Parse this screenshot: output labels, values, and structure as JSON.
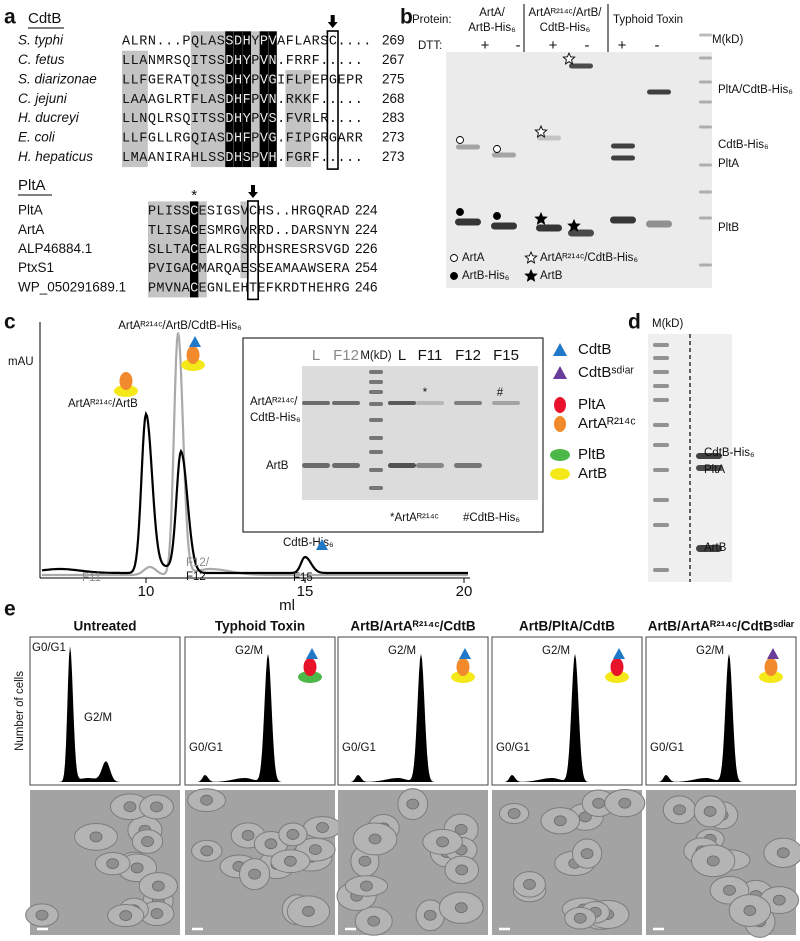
{
  "panel_a": {
    "label": "a",
    "cdtb": {
      "title": "CdtB",
      "rows": [
        {
          "name": "S. typhi",
          "sequence": "ALRN...PQLASSDHYPVAFLARSC....",
          "end": 269
        },
        {
          "name": "C. fetus",
          "sequence": "LLANMRSQITSSDHYPVN.FRRF.....",
          "end": 267
        },
        {
          "name": "S. diarizonae",
          "sequence": "LLFGERATQISSDHYPVGIFLPEPGEPR",
          "end": 275
        },
        {
          "name": "C. jejuni",
          "sequence": "LAAAGLRTFLASDHFPVN.RKKF.....",
          "end": 268
        },
        {
          "name": "H. ducreyi",
          "sequence": "LLNQLRSQITSSDHYPVS.FVRLR....",
          "end": 283
        },
        {
          "name": "E. coli",
          "sequence": "LLFGLLRGQIASDHFPVG.FIPGRGARR",
          "end": 273
        },
        {
          "name": "H. hepaticus",
          "sequence": "LMAANIRAHLSSDHSPVH.FGRF.....",
          "end": 273
        }
      ]
    },
    "plta": {
      "title": "PltA",
      "marker": "*",
      "rows": [
        {
          "name": "PltA",
          "sequence": "PLISSCESIGSVCHS..HRGQRAD",
          "end": 224
        },
        {
          "name": "ArtA",
          "sequence": "TLISACESMRGVRRD..DARSNYN",
          "end": 224
        },
        {
          "name": "ALP46884.1",
          "sequence": "SLLTACEALRGSRDHSRESRSVGD",
          "end": 226
        },
        {
          "name": "PtxS1",
          "sequence": "PVIGACMARQAESSEAMAAWSERA",
          "end": 254
        },
        {
          "name": "WP_050291689.1",
          "sequence": "PMVNACEGNLEHTEFKRDTHEHRG",
          "end": 246
        }
      ]
    }
  },
  "panel_b": {
    "label": "b",
    "protein_label": "Protein:",
    "groups": [
      [
        "ArtA/",
        "ArtB-His₆"
      ],
      [
        "ArtAᴿ²¹⁴ᶜ/ArtB/",
        "CdtB-His₆"
      ],
      [
        "Typhoid Toxin"
      ]
    ],
    "dtt_label": "DTT:",
    "dtt": [
      "+",
      "-",
      "+",
      "-",
      "+",
      "-"
    ],
    "marker_label": "M(kD)",
    "band_labels": [
      "PltA/CdtB-His₆",
      "CdtB-His₆",
      "PltA",
      "PltB"
    ],
    "legend": [
      "ArtA",
      "ArtB-His₆",
      "ArtAᴿ²¹⁴ᶜ/CdtB-His₆",
      "ArtB"
    ]
  },
  "panel_c": {
    "label": "c",
    "y_label": "mAU",
    "x_label": "ml",
    "xticks": [
      10,
      15,
      20
    ],
    "peak_labels": {
      "complex": "ArtAᴿ²¹⁴ᶜ/ArtB/CdtB-His₆",
      "artab": "ArtAᴿ²¹⁴ᶜ/ArtB",
      "cdtb": "CdtB-His₆"
    },
    "fraction_labels": {
      "f11": "F11",
      "f12a": "F12/",
      "f12b": "F12",
      "f15": "F15"
    },
    "inset": {
      "lanes": [
        "L",
        "F12",
        "M(kD)",
        "L",
        "F11",
        "F12",
        "F15"
      ],
      "band_labels": [
        "ArtAᴿ²¹⁴ᶜ/",
        "CdtB-His₆",
        "ArtB"
      ],
      "marks": [
        "*",
        "#"
      ],
      "footnotes": [
        "*ArtAᴿ²¹⁴ᶜ",
        "#CdtB-His₆"
      ]
    },
    "legend": [
      "CdtB",
      "CdtBˢᵈⁱᵃʳ",
      "PltA",
      "ArtAᴿ²¹⁴ᶜ",
      "PltB",
      "ArtB"
    ]
  },
  "panel_d": {
    "label": "d",
    "marker_label": "M(kD)",
    "band_labels": [
      "CdtB-His₆",
      "PltA",
      "ArtB"
    ]
  },
  "panel_e": {
    "label": "e",
    "y_label": "Number of cells",
    "panels": [
      {
        "title": "Untreated",
        "g0g1": "G0/G1",
        "g2m": "G2/M"
      },
      {
        "title": "Typhoid Toxin",
        "g0g1": "G0/G1",
        "g2m": "G2/M"
      },
      {
        "title": "ArtB/ArtAᴿ²¹⁴ᶜ/CdtB",
        "g0g1": "G0/G1",
        "g2m": "G2/M"
      },
      {
        "title": "ArtB/PltA/CdtB",
        "g0g1": "G0/G1",
        "g2m": "G2/M"
      },
      {
        "title": "ArtB/ArtAᴿ²¹⁴ᶜ/CdtBˢᵈⁱᵃʳ",
        "g0g1": "G0/G1",
        "g2m": "G2/M"
      }
    ]
  }
}
